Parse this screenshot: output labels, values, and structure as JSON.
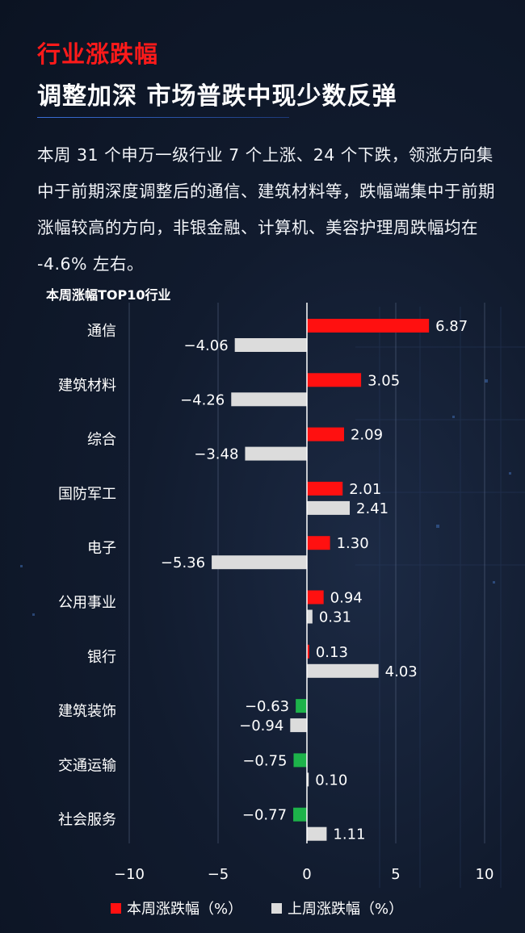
{
  "header": {
    "section_title": "行业涨跌幅",
    "headline": "调整加深 市场普跌中现少数反弹"
  },
  "summary": "本周 31 个申万一级行业 7 个上涨、24 个下跌，领涨方向集中于前期深度调整后的通信、建筑材料等，跌幅端集中于前期涨幅较高的方向，非银金融、计算机、美容护理周跌幅均在 -4.6% 左右。",
  "chart_title": "本周涨幅TOP10行业",
  "colors": {
    "this_week_up": "#ff1010",
    "this_week_down": "#1db34a",
    "last_week": "#dcdcdc"
  },
  "chart_data": {
    "type": "bar",
    "orientation": "horizontal",
    "categories": [
      "通信",
      "建筑材料",
      "综合",
      "国防军工",
      "电子",
      "公用事业",
      "银行",
      "建筑装饰",
      "交通运输",
      "社会服务"
    ],
    "series": [
      {
        "name": "本周涨跌幅（%）",
        "values": [
          6.87,
          3.05,
          2.09,
          2.01,
          1.3,
          0.94,
          0.13,
          -0.63,
          -0.75,
          -0.77
        ],
        "labels": [
          "6.87",
          "3.05",
          "2.09",
          "2.01",
          "1.30",
          "0.94",
          "0.13",
          "−0.63",
          "−0.75",
          "−0.77"
        ]
      },
      {
        "name": "上周涨跌幅（%）",
        "values": [
          -4.06,
          -4.26,
          -3.48,
          2.41,
          -5.36,
          0.31,
          4.03,
          -0.94,
          0.1,
          1.11
        ],
        "labels": [
          "−4.06",
          "−4.26",
          "−3.48",
          "2.41",
          "−5.36",
          "0.31",
          "4.03",
          "−0.94",
          "0.10",
          "1.11"
        ]
      }
    ],
    "xlim": [
      -10,
      10
    ],
    "xticks": [
      "−10",
      "−5",
      "0",
      "5",
      "10"
    ],
    "xtick_values": [
      -10,
      -5,
      0,
      5,
      10
    ],
    "legend_position": "bottom",
    "grid": "vertical"
  }
}
